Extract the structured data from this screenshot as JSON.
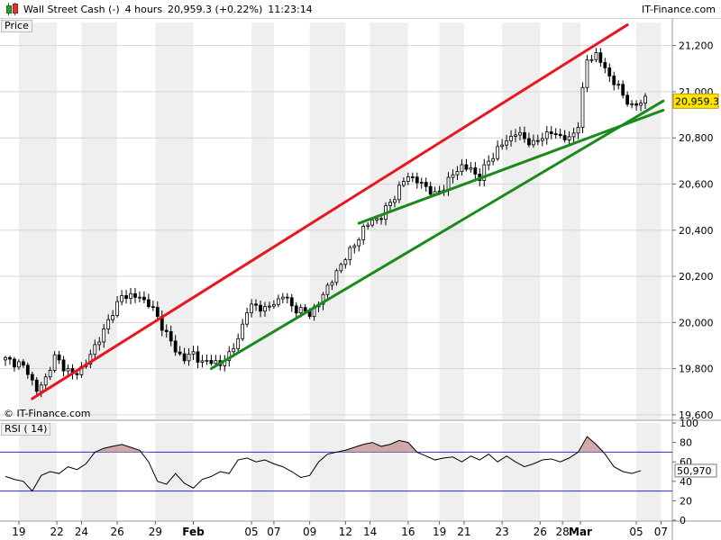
{
  "header": {
    "instrument": "Wall Street Cash (-)",
    "timeframe": "4 hours",
    "price_change": "20,959.3 (+0.22%)",
    "time": "11:23:14",
    "brand": "IT-Finance.com",
    "icon": "candlestick-chart-icon"
  },
  "labels": {
    "price_panel": "Price",
    "watermark": "© IT-Finance.com",
    "rsi_panel": "RSI ( 14)"
  },
  "colors": {
    "channel_upper": "#e8161e",
    "trendlines": "#1a8a1a",
    "rsi_line": "#000000",
    "rsi_fill": "#c89a9a",
    "rsi_levels": "#2b2bd4",
    "price_marker": "#ffe400"
  },
  "chart_data": [
    {
      "type": "candlestick",
      "title": "Wall Street Cash (-)",
      "ylabel": "Price",
      "ylim": [
        19580,
        21300
      ],
      "y_ticks": [
        "21,200",
        "21,000",
        "20,800",
        "20,600",
        "20,400",
        "20,200",
        "20,000",
        "19,800",
        "19,600"
      ],
      "y_tick_values": [
        21200,
        21000,
        20800,
        20600,
        20400,
        20200,
        20000,
        19800,
        19600
      ],
      "last_price": 20959.3,
      "last_price_label": "20,959.3",
      "x_ticks": [
        "19",
        "22",
        "24",
        "26",
        "29",
        "Feb",
        "05",
        "07",
        "09",
        "12",
        "14",
        "16",
        "19",
        "21",
        "23",
        "26",
        "28",
        "Mar",
        "05",
        "07"
      ],
      "x_range": [
        0,
        143
      ],
      "x_tick_positions": [
        3,
        11.5,
        17,
        25,
        33.5,
        42,
        55,
        60,
        68,
        76,
        81.5,
        90,
        97,
        102.5,
        111,
        119.5,
        124.5,
        128.5,
        141,
        146.5
      ],
      "grid": "vertical alternating bands + horizontal price lines",
      "close_path": [
        [
          0,
          19840
        ],
        [
          3,
          19820
        ],
        [
          5,
          19790
        ],
        [
          7,
          19700
        ],
        [
          9,
          19760
        ],
        [
          11,
          19850
        ],
        [
          13,
          19810
        ],
        [
          15,
          19770
        ],
        [
          18,
          19820
        ],
        [
          20,
          19900
        ],
        [
          22,
          19960
        ],
        [
          24,
          20050
        ],
        [
          26,
          20110
        ],
        [
          28,
          20120
        ],
        [
          30,
          20105
        ],
        [
          32,
          20085
        ],
        [
          34,
          20020
        ],
        [
          36,
          19950
        ],
        [
          38,
          19880
        ],
        [
          40,
          19840
        ],
        [
          42,
          19870
        ],
        [
          44,
          19820
        ],
        [
          46,
          19840
        ],
        [
          48,
          19810
        ],
        [
          50,
          19870
        ],
        [
          52,
          19920
        ],
        [
          54,
          20060
        ],
        [
          56,
          20070
        ],
        [
          58,
          20060
        ],
        [
          60,
          20080
        ],
        [
          62,
          20120
        ],
        [
          64,
          20070
        ],
        [
          66,
          20050
        ],
        [
          68,
          20040
        ],
        [
          70,
          20080
        ],
        [
          72,
          20160
        ],
        [
          74,
          20210
        ],
        [
          76,
          20290
        ],
        [
          78,
          20330
        ],
        [
          80,
          20410
        ],
        [
          82,
          20440
        ],
        [
          84,
          20460
        ],
        [
          86,
          20520
        ],
        [
          88,
          20580
        ],
        [
          90,
          20640
        ],
        [
          92,
          20610
        ],
        [
          94,
          20590
        ],
        [
          96,
          20550
        ],
        [
          98,
          20590
        ],
        [
          100,
          20640
        ],
        [
          102,
          20680
        ],
        [
          104,
          20660
        ],
        [
          106,
          20630
        ],
        [
          108,
          20700
        ],
        [
          110,
          20750
        ],
        [
          112,
          20790
        ],
        [
          114,
          20820
        ],
        [
          116,
          20800
        ],
        [
          118,
          20770
        ],
        [
          120,
          20810
        ],
        [
          122,
          20820
        ],
        [
          124,
          20810
        ],
        [
          126,
          20790
        ],
        [
          128,
          20860
        ],
        [
          130,
          21140
        ],
        [
          132,
          21160
        ],
        [
          134,
          21100
        ],
        [
          136,
          21040
        ],
        [
          138,
          20990
        ],
        [
          140,
          20930
        ],
        [
          142,
          20959
        ]
      ],
      "trendlines": [
        {
          "name": "channel-upper",
          "from": [
            6,
            19670
          ],
          "to": [
            139,
            21290
          ]
        },
        {
          "name": "support-lower",
          "from": [
            46,
            19800
          ],
          "to": [
            147,
            20960
          ]
        },
        {
          "name": "support-upper",
          "from": [
            79,
            20430
          ],
          "to": [
            147,
            20920
          ]
        }
      ]
    },
    {
      "type": "line",
      "title": "RSI ( 14)",
      "ylim": [
        0,
        100
      ],
      "y_ticks": [
        "100",
        "80",
        "60",
        "40",
        "20",
        "0"
      ],
      "y_tick_values": [
        100,
        80,
        60,
        40,
        20,
        0
      ],
      "levels": [
        70,
        30
      ],
      "last_value": 50.97,
      "last_value_label": "50,970",
      "x_range": [
        0,
        143
      ],
      "x": [
        0,
        2,
        4,
        6,
        8,
        10,
        12,
        14,
        16,
        18,
        20,
        22,
        24,
        26,
        28,
        30,
        32,
        34,
        36,
        38,
        40,
        42,
        44,
        46,
        48,
        50,
        52,
        54,
        56,
        58,
        60,
        62,
        64,
        66,
        68,
        70,
        72,
        74,
        76,
        78,
        80,
        82,
        84,
        86,
        88,
        90,
        92,
        94,
        96,
        98,
        100,
        102,
        104,
        106,
        108,
        110,
        112,
        114,
        116,
        118,
        120,
        122,
        124,
        126,
        128,
        130,
        132,
        134,
        136,
        138,
        140,
        142
      ],
      "values": [
        45,
        42,
        40,
        30,
        46,
        50,
        48,
        55,
        52,
        58,
        70,
        74,
        76,
        78,
        75,
        72,
        60,
        40,
        37,
        48,
        38,
        33,
        42,
        45,
        50,
        48,
        62,
        64,
        60,
        62,
        58,
        55,
        50,
        44,
        46,
        60,
        68,
        70,
        72,
        75,
        78,
        80,
        76,
        78,
        82,
        80,
        70,
        66,
        62,
        64,
        65,
        60,
        66,
        62,
        68,
        60,
        66,
        60,
        55,
        58,
        62,
        63,
        60,
        64,
        70,
        86,
        78,
        68,
        55,
        50,
        48,
        51
      ]
    }
  ]
}
